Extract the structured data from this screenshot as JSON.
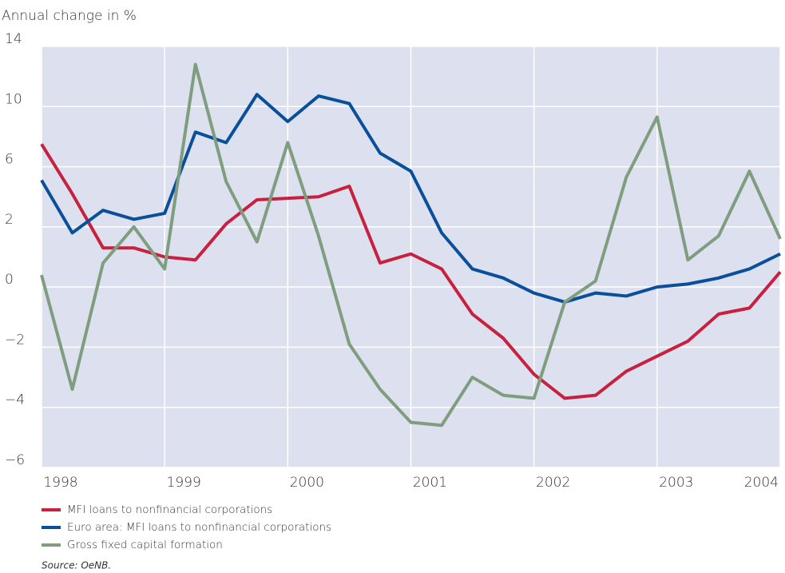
{
  "chart_data": {
    "type": "line",
    "title": "Annual change in %",
    "source": "Source: OeNB.",
    "x": [
      1998,
      1998.25,
      1998.5,
      1998.75,
      1999,
      1999.25,
      1999.5,
      1999.75,
      2000,
      2000.25,
      2000.5,
      2000.75,
      2001,
      2001.25,
      2001.5,
      2001.75,
      2002,
      2002.25,
      2002.5,
      2002.75,
      2003,
      2003.25,
      2003.5,
      2003.75,
      2004
    ],
    "xlim": [
      1998,
      2004
    ],
    "xticks": [
      1998,
      1999,
      2000,
      2001,
      2002,
      2003,
      2004
    ],
    "ylim": [
      -6,
      14
    ],
    "yticks": [
      14,
      10,
      6,
      2,
      0,
      {
        "value": -2,
        "label": "−2"
      },
      {
        "value": -4,
        "label": "−4"
      },
      {
        "value": -6,
        "label": "−6"
      }
    ],
    "grid": true,
    "background": "#dde0ee",
    "series": [
      {
        "name": "MFI loans to nonfinancial corporations",
        "color": "#c8203f",
        "values": [
          7.5,
          4.2,
          1.3,
          1.3,
          1.0,
          0.9,
          2.2,
          3.8,
          3.9,
          4.0,
          4.7,
          0.8,
          1.1,
          0.6,
          -0.9,
          -1.7,
          -2.9,
          -3.7,
          -3.6,
          -2.8,
          -2.3,
          -1.8,
          -0.9,
          -0.7,
          0.5
        ]
      },
      {
        "name": "Euro area: MFI loans to nonfinancial corporations",
        "color": "#0a4f9a",
        "values": [
          5.1,
          1.8,
          3.1,
          2.5,
          2.9,
          8.3,
          7.6,
          10.8,
          9.0,
          10.7,
          10.2,
          6.9,
          5.7,
          1.8,
          0.6,
          0.3,
          -0.2,
          -0.5,
          -0.2,
          -0.3,
          0.0,
          0.1,
          0.3,
          0.6,
          1.1
        ]
      },
      {
        "name": "Gross fixed capital formation",
        "color": "#7f9e7f",
        "values": [
          0.4,
          -3.4,
          0.8,
          2.0,
          0.6,
          12.8,
          5.0,
          1.5,
          7.6,
          1.7,
          -1.9,
          -3.4,
          -4.5,
          -4.6,
          -3.0,
          -3.6,
          -3.7,
          -0.5,
          0.2,
          5.3,
          9.3,
          0.9,
          1.7,
          5.7,
          1.6
        ]
      }
    ]
  }
}
